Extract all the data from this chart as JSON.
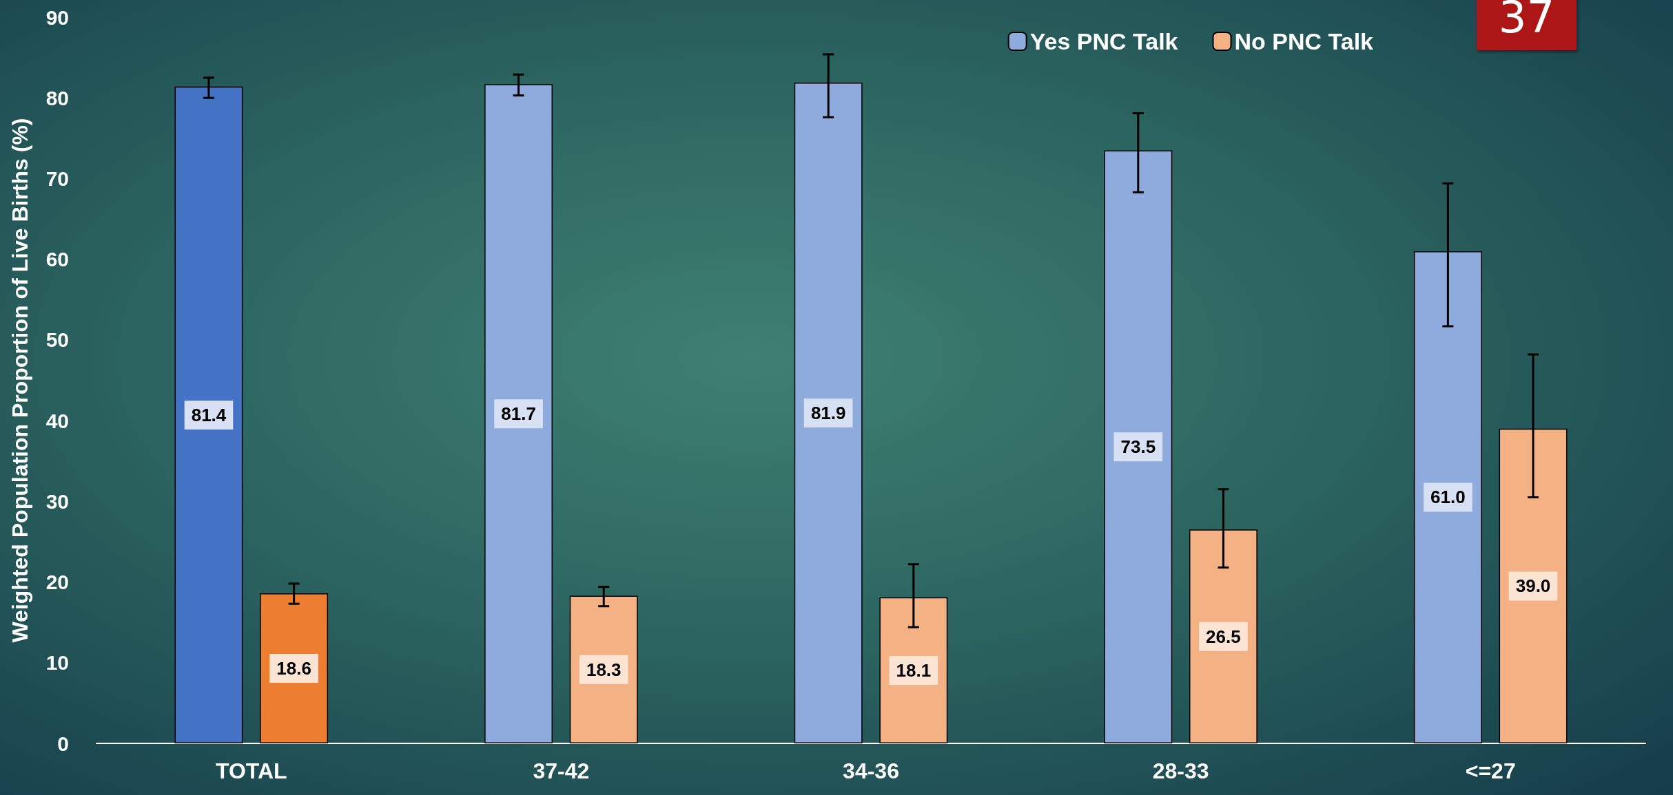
{
  "chart_data": {
    "type": "bar",
    "ylabel": "Weighted Population Proportion of Live Births (%)",
    "categories": [
      "TOTAL",
      "37-42",
      "34-36",
      "28-33",
      "<=27"
    ],
    "series": [
      {
        "name": "Yes PNC Talk",
        "color": "#8faadc",
        "colors": [
          "#4472c4",
          "#8faadc",
          "#8faadc",
          "#8faadc",
          "#8faadc"
        ],
        "values": [
          81.4,
          81.7,
          81.9,
          73.5,
          61.0
        ],
        "value_labels": [
          "81.4",
          "81.7",
          "81.9",
          "73.5",
          "61.0"
        ],
        "errors": [
          [
            80.0,
            82.5
          ],
          [
            80.3,
            82.9
          ],
          [
            77.6,
            85.4
          ],
          [
            68.3,
            78.1
          ],
          [
            51.7,
            69.4
          ]
        ]
      },
      {
        "name": "No PNC Talk",
        "color": "#f4b183",
        "colors": [
          "#ed7d31",
          "#f4b183",
          "#f4b183",
          "#f4b183",
          "#f4b183"
        ],
        "values": [
          18.6,
          18.3,
          18.1,
          26.5,
          39.0
        ],
        "value_labels": [
          "18.6",
          "18.3",
          "18.1",
          "26.5",
          "39.0"
        ],
        "errors": [
          [
            17.3,
            19.8
          ],
          [
            17.0,
            19.4
          ],
          [
            14.4,
            22.2
          ],
          [
            21.8,
            31.5
          ],
          [
            30.5,
            48.2
          ]
        ]
      }
    ],
    "ylim": [
      0,
      90
    ],
    "yticks": [
      0,
      10,
      20,
      30,
      40,
      50,
      60,
      70,
      80,
      90
    ],
    "grid": false,
    "legend": "top right",
    "annotations": [
      "37"
    ]
  }
}
